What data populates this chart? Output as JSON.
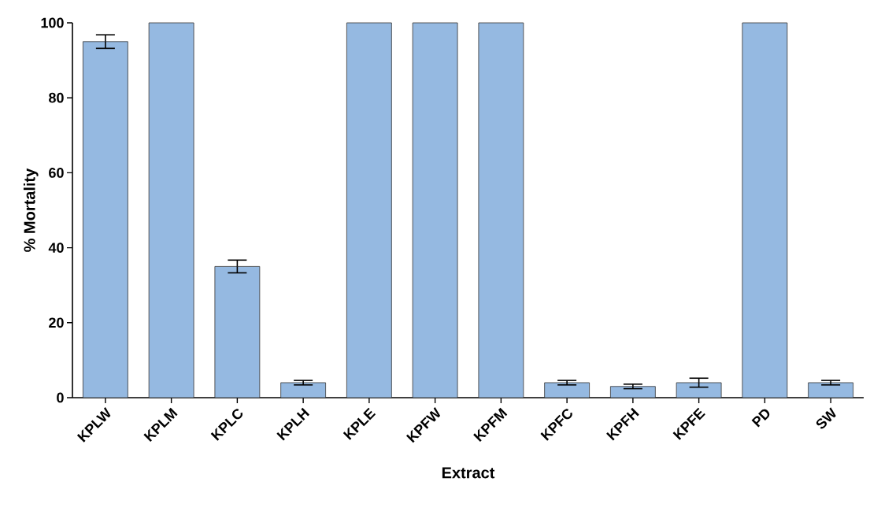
{
  "chart_data": {
    "type": "bar",
    "xlabel": "Extract",
    "ylabel": "% Mortality",
    "categories": [
      "KPLW",
      "KPLM",
      "KPLC",
      "KPLH",
      "KPLE",
      "KPFW",
      "KPFM",
      "KPFC",
      "KPFH",
      "KPFE",
      "PD",
      "SW"
    ],
    "values": [
      95,
      100,
      35,
      4,
      100,
      100,
      100,
      4,
      3,
      4,
      100,
      4
    ],
    "errors": [
      1.8,
      null,
      1.7,
      0.6,
      null,
      null,
      null,
      0.6,
      0.6,
      1.2,
      null,
      0.6
    ],
    "color": "#95b9e1",
    "ylim": [
      0,
      100
    ],
    "yticks": [
      0,
      20,
      40,
      60,
      80,
      100
    ],
    "grid": false
  }
}
